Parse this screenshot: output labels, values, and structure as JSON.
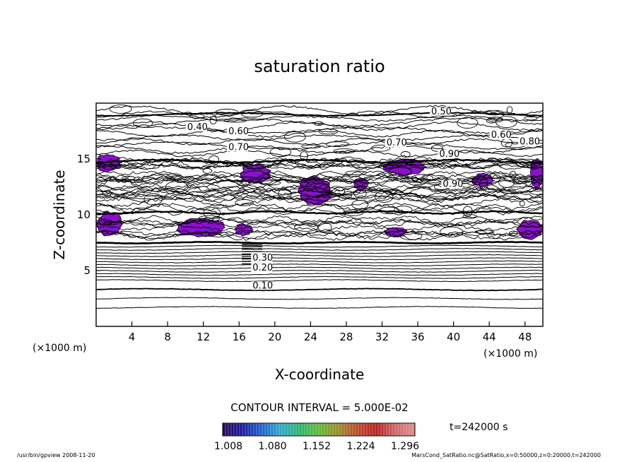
{
  "chart_data": {
    "type": "contour",
    "title": "saturation ratio",
    "xlabel": "X-coordinate",
    "ylabel": "Z-coordinate",
    "x_unit_left": "(×1000 m)",
    "x_unit_right": "(×1000 m)",
    "xlim": [
      0,
      50
    ],
    "ylim": [
      0,
      20
    ],
    "x_ticks": [
      4,
      8,
      12,
      16,
      20,
      24,
      28,
      32,
      36,
      40,
      44,
      48
    ],
    "x_tick_labels": [
      "4",
      "8",
      "12",
      "16",
      "20",
      "24",
      "28",
      "32",
      "36",
      "40",
      "44",
      "48"
    ],
    "y_ticks": [
      5,
      10,
      15
    ],
    "y_tick_labels": [
      "5",
      "10",
      "15"
    ],
    "contour_interval_text": "CONTOUR INTERVAL = 5.000E-02",
    "contour_labels": [
      {
        "text": "0.10",
        "x": 17.5,
        "y": 3.4
      },
      {
        "text": "0.20",
        "x": 17.5,
        "y": 5.0
      },
      {
        "text": "0.30",
        "x": 17.5,
        "y": 5.9
      },
      {
        "text": "0.40",
        "x": 10.2,
        "y": 17.6
      },
      {
        "text": "0.50",
        "x": 37.5,
        "y": 19.0
      },
      {
        "text": "0.60",
        "x": 14.8,
        "y": 17.2
      },
      {
        "text": "0.60",
        "x": 44.2,
        "y": 16.9
      },
      {
        "text": "0.70",
        "x": 14.8,
        "y": 15.8
      },
      {
        "text": "0.70",
        "x": 32.5,
        "y": 16.2
      },
      {
        "text": "0.80",
        "x": 47.4,
        "y": 16.3
      },
      {
        "text": "0.90",
        "x": 38.8,
        "y": 12.5
      },
      {
        "text": "0.90",
        "x": 38.4,
        "y": 15.2
      }
    ],
    "shaded_regions": [
      {
        "x": [
          0,
          2.8
        ],
        "z": [
          13.8,
          15.5
        ]
      },
      {
        "x": [
          16.2,
          19.5
        ],
        "z": [
          12.8,
          14.6
        ]
      },
      {
        "x": [
          22.5,
          26.5
        ],
        "z": [
          10.8,
          13.5
        ]
      },
      {
        "x": [
          28.8,
          30.5
        ],
        "z": [
          12.2,
          13.3
        ]
      },
      {
        "x": [
          32.0,
          37.0
        ],
        "z": [
          13.5,
          15.0
        ]
      },
      {
        "x": [
          42.0,
          44.5
        ],
        "z": [
          12.5,
          13.7
        ]
      },
      {
        "x": [
          48.6,
          50
        ],
        "z": [
          12.3,
          15.2
        ]
      },
      {
        "x": [
          0,
          3.0
        ],
        "z": [
          8.0,
          10.3
        ]
      },
      {
        "x": [
          9.0,
          14.5
        ],
        "z": [
          8.0,
          9.7
        ]
      },
      {
        "x": [
          15.5,
          17.5
        ],
        "z": [
          8.1,
          9.2
        ]
      },
      {
        "x": [
          32.2,
          34.8
        ],
        "z": [
          8.0,
          8.9
        ]
      },
      {
        "x": [
          47.0,
          50
        ],
        "z": [
          7.8,
          9.6
        ]
      }
    ],
    "shade_color": "#8a10cc",
    "colorbar": {
      "tick_labels": [
        "1.008",
        "1.080",
        "1.152",
        "1.224",
        "1.296"
      ],
      "colors": [
        "#2a0a55",
        "#1a1a9a",
        "#1f5fc8",
        "#30a8c8",
        "#2fb070",
        "#60b83a",
        "#9a8a2a",
        "#b84a2a",
        "#b82020",
        "#c86a6a",
        "#e08a8a"
      ]
    },
    "time_label": "t=242000 s"
  },
  "footer": {
    "left": "/usr/bin/gpview   2008-11-20",
    "right": "MarsCond_SatRatio.nc@SatRatio,x=0:50000,z=0:20000,t=242000"
  }
}
